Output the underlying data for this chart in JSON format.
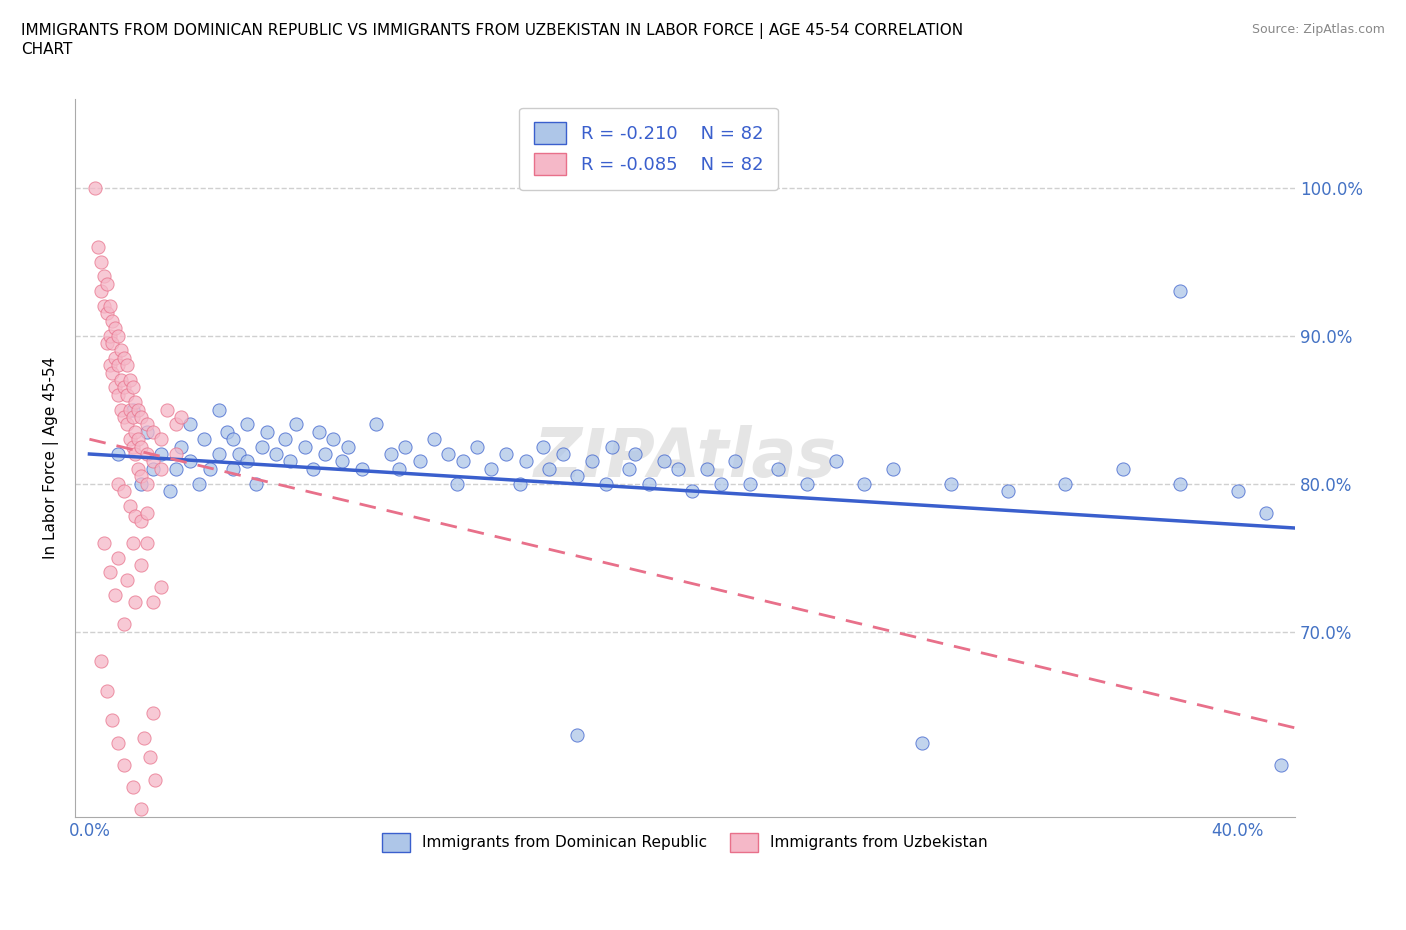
{
  "title": "IMMIGRANTS FROM DOMINICAN REPUBLIC VS IMMIGRANTS FROM UZBEKISTAN IN LABOR FORCE | AGE 45-54 CORRELATION\nCHART",
  "source": "Source: ZipAtlas.com",
  "ylabel": "In Labor Force | Age 45-54",
  "y_ticks": [
    0.7,
    0.8,
    0.9,
    1.0
  ],
  "y_tick_labels": [
    "70.0%",
    "80.0%",
    "90.0%",
    "100.0%"
  ],
  "xlim": [
    -0.005,
    0.42
  ],
  "ylim": [
    0.575,
    1.06
  ],
  "R_blue": -0.21,
  "R_pink": -0.085,
  "N": 82,
  "blue_color": "#aec6e8",
  "pink_color": "#f5b8c8",
  "blue_line_color": "#3a5fcd",
  "pink_line_color": "#e8708a",
  "watermark": "ZIPAtlas",
  "legend_label_blue": "Immigrants from Dominican Republic",
  "legend_label_pink": "Immigrants from Uzbekistan",
  "blue_scatter": [
    [
      0.01,
      0.82
    ],
    [
      0.015,
      0.85
    ],
    [
      0.018,
      0.8
    ],
    [
      0.02,
      0.835
    ],
    [
      0.022,
      0.81
    ],
    [
      0.025,
      0.82
    ],
    [
      0.028,
      0.795
    ],
    [
      0.03,
      0.81
    ],
    [
      0.032,
      0.825
    ],
    [
      0.035,
      0.84
    ],
    [
      0.035,
      0.815
    ],
    [
      0.038,
      0.8
    ],
    [
      0.04,
      0.83
    ],
    [
      0.042,
      0.81
    ],
    [
      0.045,
      0.85
    ],
    [
      0.045,
      0.82
    ],
    [
      0.048,
      0.835
    ],
    [
      0.05,
      0.81
    ],
    [
      0.05,
      0.83
    ],
    [
      0.052,
      0.82
    ],
    [
      0.055,
      0.84
    ],
    [
      0.055,
      0.815
    ],
    [
      0.058,
      0.8
    ],
    [
      0.06,
      0.825
    ],
    [
      0.062,
      0.835
    ],
    [
      0.065,
      0.82
    ],
    [
      0.068,
      0.83
    ],
    [
      0.07,
      0.815
    ],
    [
      0.072,
      0.84
    ],
    [
      0.075,
      0.825
    ],
    [
      0.078,
      0.81
    ],
    [
      0.08,
      0.835
    ],
    [
      0.082,
      0.82
    ],
    [
      0.085,
      0.83
    ],
    [
      0.088,
      0.815
    ],
    [
      0.09,
      0.825
    ],
    [
      0.095,
      0.81
    ],
    [
      0.1,
      0.84
    ],
    [
      0.105,
      0.82
    ],
    [
      0.108,
      0.81
    ],
    [
      0.11,
      0.825
    ],
    [
      0.115,
      0.815
    ],
    [
      0.12,
      0.83
    ],
    [
      0.125,
      0.82
    ],
    [
      0.128,
      0.8
    ],
    [
      0.13,
      0.815
    ],
    [
      0.135,
      0.825
    ],
    [
      0.14,
      0.81
    ],
    [
      0.145,
      0.82
    ],
    [
      0.15,
      0.8
    ],
    [
      0.152,
      0.815
    ],
    [
      0.158,
      0.825
    ],
    [
      0.16,
      0.81
    ],
    [
      0.165,
      0.82
    ],
    [
      0.17,
      0.805
    ],
    [
      0.175,
      0.815
    ],
    [
      0.18,
      0.8
    ],
    [
      0.182,
      0.825
    ],
    [
      0.188,
      0.81
    ],
    [
      0.19,
      0.82
    ],
    [
      0.195,
      0.8
    ],
    [
      0.2,
      0.815
    ],
    [
      0.205,
      0.81
    ],
    [
      0.21,
      0.795
    ],
    [
      0.215,
      0.81
    ],
    [
      0.22,
      0.8
    ],
    [
      0.225,
      0.815
    ],
    [
      0.23,
      0.8
    ],
    [
      0.24,
      0.81
    ],
    [
      0.25,
      0.8
    ],
    [
      0.26,
      0.815
    ],
    [
      0.27,
      0.8
    ],
    [
      0.28,
      0.81
    ],
    [
      0.3,
      0.8
    ],
    [
      0.32,
      0.795
    ],
    [
      0.34,
      0.8
    ],
    [
      0.36,
      0.81
    ],
    [
      0.38,
      0.8
    ],
    [
      0.17,
      0.63
    ],
    [
      0.29,
      0.625
    ],
    [
      0.38,
      0.93
    ],
    [
      0.4,
      0.795
    ],
    [
      0.41,
      0.78
    ],
    [
      0.415,
      0.61
    ]
  ],
  "pink_scatter": [
    [
      0.002,
      1.0
    ],
    [
      0.003,
      0.96
    ],
    [
      0.004,
      0.95
    ],
    [
      0.004,
      0.93
    ],
    [
      0.005,
      0.94
    ],
    [
      0.005,
      0.92
    ],
    [
      0.006,
      0.935
    ],
    [
      0.006,
      0.915
    ],
    [
      0.006,
      0.895
    ],
    [
      0.007,
      0.92
    ],
    [
      0.007,
      0.9
    ],
    [
      0.007,
      0.88
    ],
    [
      0.008,
      0.91
    ],
    [
      0.008,
      0.895
    ],
    [
      0.008,
      0.875
    ],
    [
      0.009,
      0.905
    ],
    [
      0.009,
      0.885
    ],
    [
      0.009,
      0.865
    ],
    [
      0.01,
      0.9
    ],
    [
      0.01,
      0.88
    ],
    [
      0.01,
      0.86
    ],
    [
      0.011,
      0.89
    ],
    [
      0.011,
      0.87
    ],
    [
      0.011,
      0.85
    ],
    [
      0.012,
      0.885
    ],
    [
      0.012,
      0.865
    ],
    [
      0.012,
      0.845
    ],
    [
      0.013,
      0.88
    ],
    [
      0.013,
      0.86
    ],
    [
      0.013,
      0.84
    ],
    [
      0.014,
      0.87
    ],
    [
      0.014,
      0.85
    ],
    [
      0.014,
      0.83
    ],
    [
      0.015,
      0.865
    ],
    [
      0.015,
      0.845
    ],
    [
      0.015,
      0.825
    ],
    [
      0.016,
      0.855
    ],
    [
      0.016,
      0.835
    ],
    [
      0.016,
      0.82
    ],
    [
      0.017,
      0.85
    ],
    [
      0.017,
      0.83
    ],
    [
      0.017,
      0.81
    ],
    [
      0.018,
      0.845
    ],
    [
      0.018,
      0.825
    ],
    [
      0.018,
      0.805
    ],
    [
      0.02,
      0.84
    ],
    [
      0.02,
      0.82
    ],
    [
      0.02,
      0.8
    ],
    [
      0.022,
      0.835
    ],
    [
      0.022,
      0.815
    ],
    [
      0.025,
      0.83
    ],
    [
      0.025,
      0.81
    ],
    [
      0.027,
      0.85
    ],
    [
      0.03,
      0.84
    ],
    [
      0.03,
      0.82
    ],
    [
      0.032,
      0.845
    ],
    [
      0.005,
      0.76
    ],
    [
      0.007,
      0.74
    ],
    [
      0.009,
      0.725
    ],
    [
      0.012,
      0.705
    ],
    [
      0.015,
      0.76
    ],
    [
      0.018,
      0.745
    ],
    [
      0.02,
      0.76
    ],
    [
      0.022,
      0.72
    ],
    [
      0.025,
      0.73
    ],
    [
      0.01,
      0.75
    ],
    [
      0.013,
      0.735
    ],
    [
      0.016,
      0.72
    ],
    [
      0.004,
      0.68
    ],
    [
      0.006,
      0.66
    ],
    [
      0.008,
      0.64
    ],
    [
      0.01,
      0.625
    ],
    [
      0.012,
      0.61
    ],
    [
      0.015,
      0.595
    ],
    [
      0.018,
      0.58
    ],
    [
      0.022,
      0.645
    ],
    [
      0.019,
      0.628
    ],
    [
      0.021,
      0.615
    ],
    [
      0.023,
      0.6
    ],
    [
      0.01,
      0.8
    ],
    [
      0.012,
      0.795
    ],
    [
      0.014,
      0.785
    ],
    [
      0.016,
      0.778
    ],
    [
      0.018,
      0.775
    ],
    [
      0.02,
      0.78
    ]
  ]
}
